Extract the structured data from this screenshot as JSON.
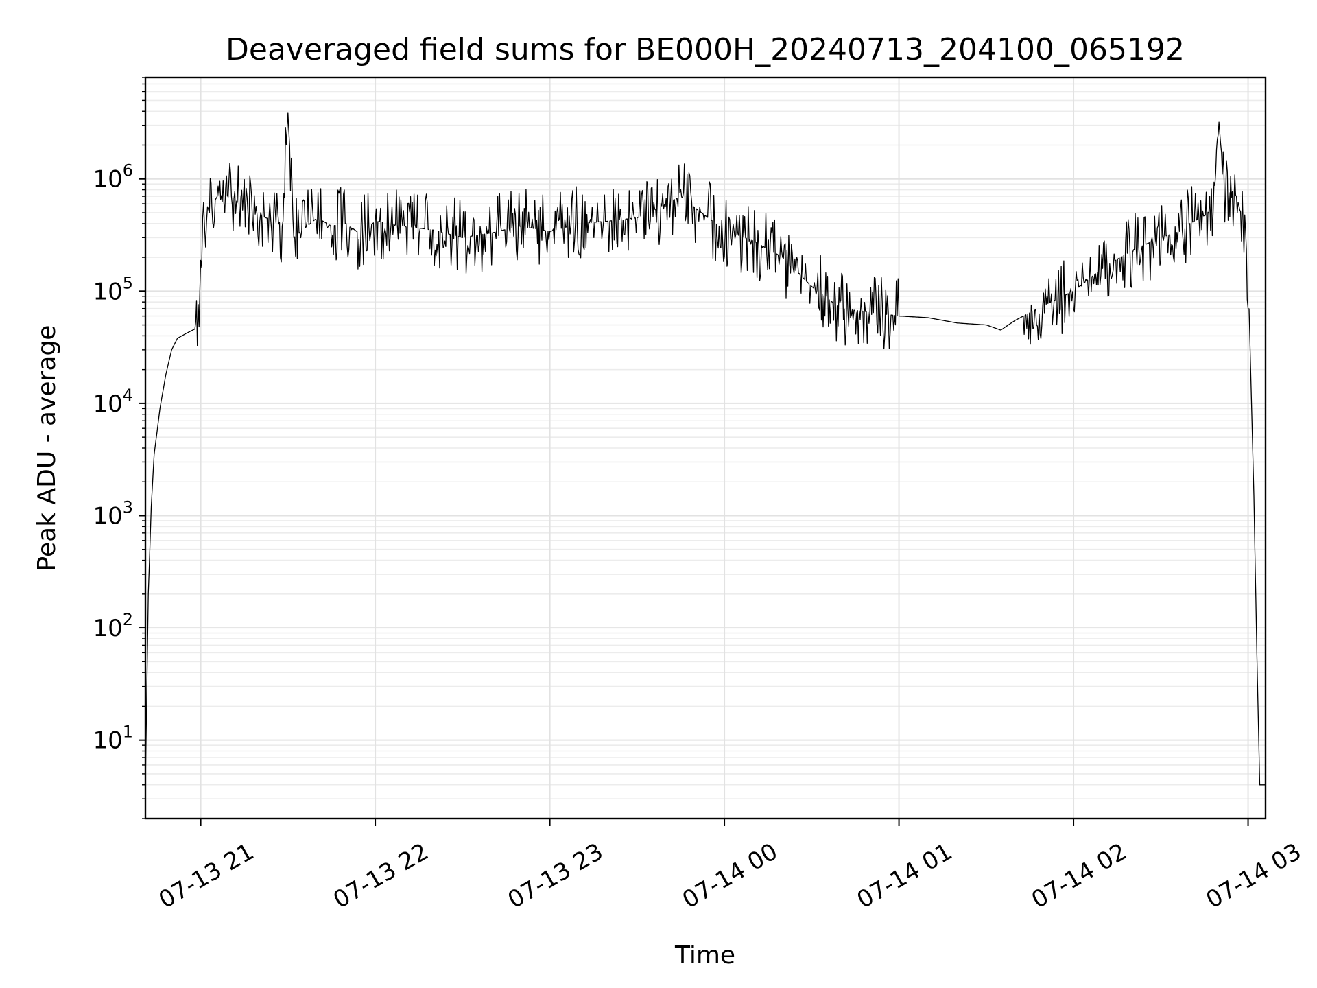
{
  "chart_data": {
    "type": "line",
    "title": "Deaveraged field sums for BE000H_20240713_204100_065192",
    "xlabel": "Time",
    "ylabel": "Peak ADU - average",
    "yscale": "log",
    "xlim": [
      "2024-07-13 20:41",
      "2024-07-14 03:06"
    ],
    "ylim": [
      2,
      8000000
    ],
    "grid": true,
    "line_color": "#000000",
    "x_ticks": [
      "07-13 21",
      "07-13 22",
      "07-13 23",
      "07-14 00",
      "07-14 01",
      "07-14 02",
      "07-14 03"
    ],
    "y_ticks": [
      {
        "base": "10",
        "exp": "1"
      },
      {
        "base": "10",
        "exp": "2"
      },
      {
        "base": "10",
        "exp": "3"
      },
      {
        "base": "10",
        "exp": "4"
      },
      {
        "base": "10",
        "exp": "5"
      },
      {
        "base": "10",
        "exp": "6"
      }
    ],
    "series": [
      {
        "x": [
          "2024-07-13 20:41",
          "2024-07-13 20:42",
          "2024-07-13 20:43",
          "2024-07-13 20:44",
          "2024-07-13 20:46",
          "2024-07-13 20:48",
          "2024-07-13 20:50",
          "2024-07-13 20:52",
          "2024-07-13 20:55",
          "2024-07-13 20:58",
          "2024-07-13 21:00",
          "2024-07-13 21:01",
          "2024-07-13 21:02",
          "2024-07-13 21:03",
          "2024-07-13 21:05",
          "2024-07-13 21:06",
          "2024-07-13 21:08",
          "2024-07-13 21:10",
          "2024-07-13 21:12",
          "2024-07-13 21:15",
          "2024-07-13 21:20",
          "2024-07-13 21:25",
          "2024-07-13 21:28",
          "2024-07-13 21:30",
          "2024-07-13 21:32",
          "2024-07-13 21:35",
          "2024-07-13 21:40",
          "2024-07-13 21:45",
          "2024-07-13 21:50",
          "2024-07-13 21:55",
          "2024-07-13 22:00",
          "2024-07-13 22:10",
          "2024-07-13 22:20",
          "2024-07-13 22:30",
          "2024-07-13 22:40",
          "2024-07-13 22:50",
          "2024-07-13 23:00",
          "2024-07-13 23:10",
          "2024-07-13 23:20",
          "2024-07-13 23:30",
          "2024-07-13 23:40",
          "2024-07-13 23:45",
          "2024-07-13 23:50",
          "2024-07-14 00:00",
          "2024-07-14 00:10",
          "2024-07-14 00:20",
          "2024-07-14 00:30",
          "2024-07-14 00:40",
          "2024-07-14 00:50",
          "2024-07-14 01:00",
          "2024-07-14 01:10",
          "2024-07-14 01:20",
          "2024-07-14 01:30",
          "2024-07-14 01:35",
          "2024-07-14 01:40",
          "2024-07-14 01:50",
          "2024-07-14 02:00",
          "2024-07-14 02:10",
          "2024-07-14 02:20",
          "2024-07-14 02:30",
          "2024-07-14 02:38",
          "2024-07-14 02:40",
          "2024-07-14 02:45",
          "2024-07-14 02:48",
          "2024-07-14 02:50",
          "2024-07-14 02:52",
          "2024-07-14 02:54",
          "2024-07-14 02:56",
          "2024-07-14 02:58",
          "2024-07-14 03:00",
          "2024-07-14 03:01",
          "2024-07-14 03:02",
          "2024-07-14 03:03",
          "2024-07-14 03:04",
          "2024-07-14 03:05",
          "2024-07-14 03:06"
        ],
        "y": [
          4,
          200,
          1200,
          3500,
          9000,
          18000,
          30000,
          38000,
          42000,
          46000,
          120000,
          300000,
          600000,
          500000,
          650000,
          720000,
          700000,
          720000,
          650000,
          500000,
          480000,
          420000,
          380000,
          3900000,
          300000,
          350000,
          450000,
          380000,
          400000,
          320000,
          420000,
          380000,
          350000,
          300000,
          330000,
          380000,
          340000,
          400000,
          420000,
          450000,
          600000,
          700000,
          550000,
          350000,
          280000,
          200000,
          110000,
          70000,
          65000,
          60000,
          58000,
          52000,
          50000,
          45000,
          55000,
          75000,
          100000,
          160000,
          230000,
          300000,
          350000,
          400000,
          470000,
          520000,
          3200000,
          650000,
          800000,
          700000,
          450000,
          150000,
          15000,
          1500,
          60,
          4,
          4,
          4
        ]
      }
    ]
  }
}
